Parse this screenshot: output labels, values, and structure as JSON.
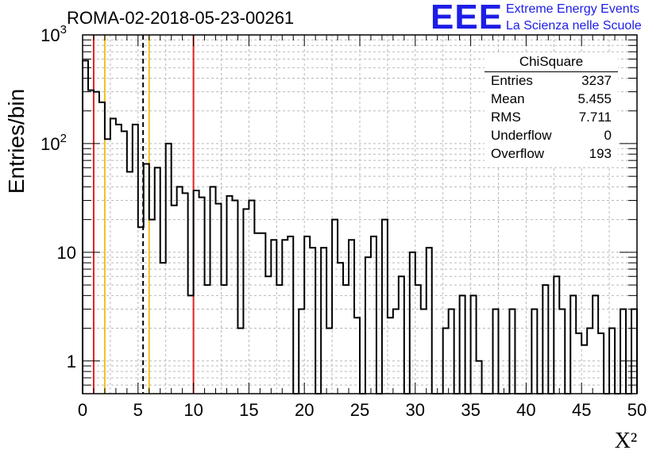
{
  "title": "ROMA-02-2018-05-23-00261",
  "logo": {
    "mark": "EEE",
    "line1": "Extreme Energy Events",
    "line2": "La Scienza nelle Scuole",
    "color": "#1d1de8"
  },
  "stats_box": {
    "title": "ChiSquare",
    "rows": [
      {
        "key": "Entries",
        "value": "3237"
      },
      {
        "key": "Mean",
        "value": "5.455"
      },
      {
        "key": "RMS",
        "value": "7.711"
      },
      {
        "key": "Underflow",
        "value": "0"
      },
      {
        "key": "Overflow",
        "value": "193"
      }
    ]
  },
  "chart_data": {
    "type": "histogram",
    "title": "ROMA-02-2018-05-23-00261",
    "xlabel": "X²",
    "ylabel": "Entries/bin",
    "xlim": [
      0,
      50
    ],
    "ylim": [
      0.5,
      1000
    ],
    "y_scale": "log",
    "grid": true,
    "bin_width": 0.5,
    "x_ticks": [
      "0",
      "5",
      "10",
      "15",
      "20",
      "25",
      "30",
      "35",
      "40",
      "45",
      "50"
    ],
    "y_ticks": [
      {
        "value": 1,
        "label": "1"
      },
      {
        "value": 10,
        "label": "10"
      },
      {
        "value": 100,
        "label": "10²"
      },
      {
        "value": 1000,
        "label": "10³"
      }
    ],
    "values": [
      580,
      310,
      300,
      240,
      110,
      170,
      150,
      130,
      55,
      150,
      17,
      65,
      20,
      60,
      8,
      100,
      27,
      40,
      35,
      4,
      37,
      32,
      5,
      40,
      28,
      5,
      33,
      30,
      2,
      25,
      30,
      15,
      15,
      6,
      13,
      5,
      13,
      14,
      0,
      3,
      14,
      11,
      0,
      11,
      2,
      20,
      8,
      5,
      13,
      2.5,
      0,
      9,
      14,
      0,
      20,
      2.5,
      3,
      6,
      0,
      10,
      5,
      3,
      11,
      0,
      0,
      2,
      3,
      0,
      4,
      0,
      4,
      1,
      0,
      0,
      3,
      0,
      0,
      3,
      0,
      0,
      0,
      3,
      0,
      5,
      0,
      6,
      3,
      0,
      4,
      1.8,
      1.4,
      2,
      4,
      1.8,
      0,
      2,
      0,
      3,
      0,
      3
    ],
    "reference_lines": [
      {
        "x": 1,
        "color": "#e02020",
        "style": "solid"
      },
      {
        "x": 2,
        "color": "#f0c020",
        "style": "solid"
      },
      {
        "x": 5.455,
        "color": "#000000",
        "style": "dashed"
      },
      {
        "x": 6,
        "color": "#f0c020",
        "style": "solid"
      },
      {
        "x": 10,
        "color": "#e02020",
        "style": "solid"
      }
    ]
  }
}
